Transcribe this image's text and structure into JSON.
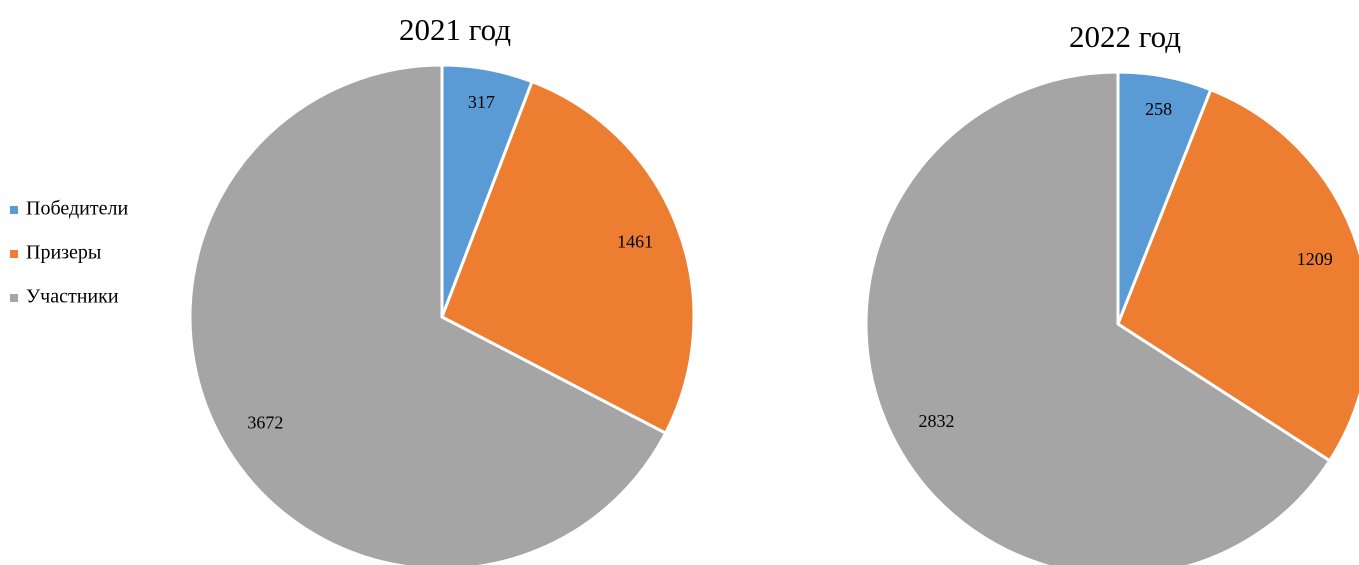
{
  "chart_data": [
    {
      "type": "pie",
      "title": "2021 год",
      "categories": [
        "Победители",
        "Призеры",
        "Участники"
      ],
      "values": [
        317,
        1461,
        3672
      ],
      "colors": [
        "#5b9bd5",
        "#ed7d31",
        "#a5a5a5"
      ],
      "legend": "left"
    },
    {
      "type": "pie",
      "title": "2022 год",
      "values": [
        258,
        1209,
        2832
      ],
      "colors": [
        "#5b9bd5",
        "#ed7d31",
        "#a5a5a5"
      ]
    }
  ]
}
